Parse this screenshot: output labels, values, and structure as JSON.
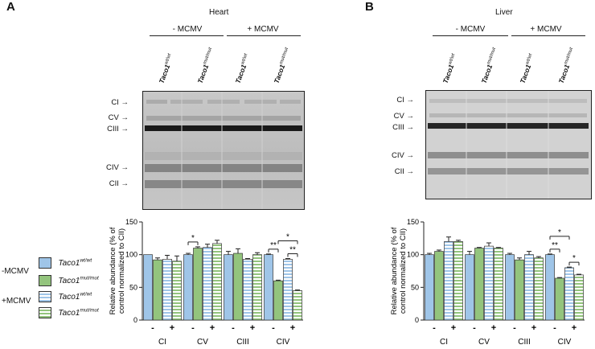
{
  "panels": [
    {
      "letter": "A",
      "title": "Heart",
      "groups": [
        "- MCMV",
        "+ MCMV"
      ],
      "lanes": [
        "wt/wt",
        "mut/mut",
        "wt/wt",
        "mut/mut"
      ],
      "bands": [
        "CI",
        "CV",
        "CIII",
        "CIV",
        "CII"
      ]
    },
    {
      "letter": "B",
      "title": "Liver",
      "groups": [
        "- MCMV",
        "+ MCMV"
      ],
      "lanes": [
        "wt/wt",
        "mut/mut",
        "wt/wt",
        "mut/mut"
      ],
      "bands": [
        "CI",
        "CV",
        "CIII",
        "CIV",
        "CII"
      ]
    }
  ],
  "gene": "Taco1",
  "legend": {
    "minus_label": "-MCMV",
    "plus_label": "+MCMV",
    "entries": [
      {
        "gene": "Taco1",
        "genotype": "wt/wt",
        "style": "solid",
        "color": "#9fc5e8"
      },
      {
        "gene": "Taco1",
        "genotype": "mut/mut",
        "style": "solid",
        "color": "#93c47d"
      },
      {
        "gene": "Taco1",
        "genotype": "wt/wt",
        "style": "striped",
        "color": "#9fc5e8"
      },
      {
        "gene": "Taco1",
        "genotype": "mut/mut",
        "style": "striped",
        "color": "#93c47d"
      }
    ]
  },
  "colors": {
    "wt": "#9fc5e8",
    "mut": "#93c47d"
  },
  "chart_data": [
    {
      "type": "bar",
      "panel": "A",
      "ylabel": "Relative abundance (% of control normalized to CII)",
      "ylim": [
        0,
        150
      ],
      "yticks": [
        0,
        50,
        100,
        150
      ],
      "categories": [
        "CI",
        "CV",
        "CIII",
        "CIV"
      ],
      "mcmv_ticks": [
        "-",
        "+"
      ],
      "series": [
        {
          "name": "Taco1 wt/wt -MCMV",
          "values": [
            100,
            100,
            100,
            100
          ],
          "err": [
            0,
            2,
            5,
            1
          ]
        },
        {
          "name": "Taco1 mut/mut -MCMV",
          "values": [
            92,
            110,
            102,
            60
          ],
          "err": [
            3,
            2,
            7,
            1
          ]
        },
        {
          "name": "Taco1 wt/wt +MCMV",
          "values": [
            93,
            111,
            93,
            93
          ],
          "err": [
            6,
            5,
            1,
            1
          ]
        },
        {
          "name": "Taco1 mut/mut +MCMV",
          "values": [
            90,
            117,
            100,
            45
          ],
          "err": [
            8,
            5,
            3,
            1
          ]
        }
      ],
      "significance": [
        {
          "text": "*",
          "category": "CV",
          "from": 0,
          "to": 1,
          "level": 1
        },
        {
          "text": "**",
          "category": "CIV",
          "from": 0,
          "to": 1,
          "level": 1
        },
        {
          "text": "*",
          "category": "CIV",
          "from": 1,
          "to": 3,
          "level": 2
        },
        {
          "text": "**",
          "category": "CIV",
          "from": 2,
          "to": 3,
          "level": 1
        }
      ]
    },
    {
      "type": "bar",
      "panel": "B",
      "ylabel": "Relative abundance (% of control normalized to CII)",
      "ylim": [
        0,
        150
      ],
      "yticks": [
        0,
        50,
        100,
        150
      ],
      "categories": [
        "CI",
        "CV",
        "CIII",
        "CIV"
      ],
      "mcmv_ticks": [
        "-",
        "+"
      ],
      "series": [
        {
          "name": "Taco1 wt/wt -MCMV",
          "values": [
            100,
            100,
            100,
            100
          ],
          "err": [
            2,
            5,
            2,
            1
          ]
        },
        {
          "name": "Taco1 mut/mut -MCMV",
          "values": [
            105,
            110,
            92,
            64
          ],
          "err": [
            2,
            1,
            3,
            1
          ]
        },
        {
          "name": "Taco1 wt/wt +MCMV",
          "values": [
            120,
            113,
            100,
            80
          ],
          "err": [
            7,
            5,
            5,
            1
          ]
        },
        {
          "name": "Taco1 mut/mut +MCMV",
          "values": [
            120,
            110,
            95,
            69
          ],
          "err": [
            2,
            1,
            2,
            1
          ]
        }
      ],
      "significance": [
        {
          "text": "**",
          "category": "CIV",
          "from": 0,
          "to": 1,
          "level": 1
        },
        {
          "text": "*",
          "category": "CIV",
          "from": 0,
          "to": 2,
          "level": 2
        },
        {
          "text": "*",
          "category": "CIV",
          "from": 2,
          "to": 3,
          "level": 1
        }
      ]
    }
  ]
}
